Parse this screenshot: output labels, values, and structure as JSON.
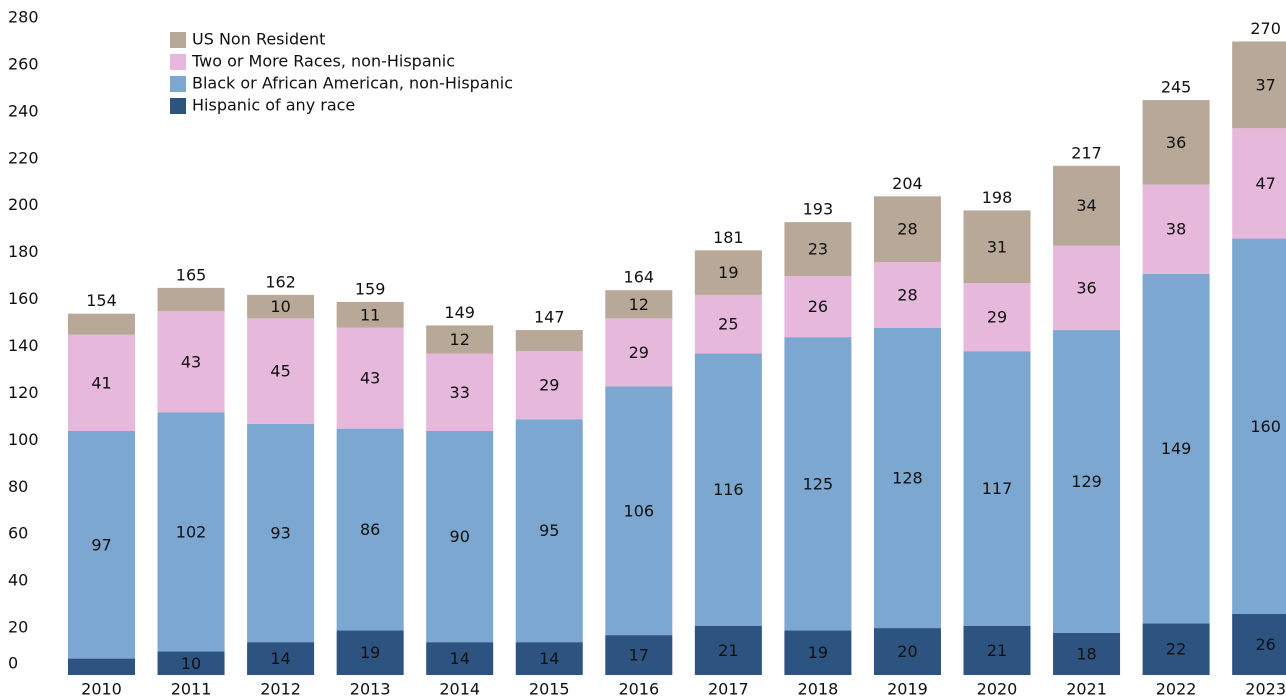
{
  "chart_data": {
    "type": "stacked_bar",
    "categories": [
      "2010",
      "2011",
      "2012",
      "2013",
      "2014",
      "2015",
      "2016",
      "2017",
      "2018",
      "2019",
      "2020",
      "2021",
      "2022",
      "2023"
    ],
    "series": [
      {
        "name": "Hispanic of any race",
        "color": "#2d5381",
        "values": [
          7,
          10,
          14,
          19,
          14,
          14,
          17,
          21,
          19,
          20,
          21,
          18,
          22,
          26
        ],
        "value_labels": [
          null,
          "10",
          "14",
          "19",
          "14",
          "14",
          "17",
          "21",
          "19",
          "20",
          "21",
          "18",
          "22",
          "26"
        ]
      },
      {
        "name": "Black or African American, non-Hispanic",
        "color": "#7ba7d0",
        "values": [
          97,
          102,
          93,
          86,
          90,
          95,
          106,
          116,
          125,
          128,
          117,
          129,
          149,
          160
        ],
        "value_labels": [
          "97",
          "102",
          "93",
          "86",
          "90",
          "95",
          "106",
          "116",
          "125",
          "128",
          "117",
          "129",
          "149",
          "160"
        ]
      },
      {
        "name": "Two or More Races, non-Hispanic",
        "color": "#e6b9dc",
        "values": [
          41,
          43,
          45,
          43,
          33,
          29,
          29,
          25,
          26,
          28,
          29,
          36,
          38,
          47
        ],
        "value_labels": [
          "41",
          "43",
          "45",
          "43",
          "33",
          "29",
          "29",
          "25",
          "26",
          "28",
          "29",
          "36",
          "38",
          "47"
        ]
      },
      {
        "name": "US Non Resident",
        "color": "#b8a898",
        "values": [
          9,
          10,
          10,
          11,
          12,
          9,
          12,
          19,
          23,
          28,
          31,
          34,
          36,
          37
        ],
        "value_labels": [
          null,
          null,
          "10",
          "11",
          "12",
          null,
          "12",
          "19",
          "23",
          "28",
          "31",
          "34",
          "36",
          "37"
        ]
      }
    ],
    "totals": [
      154,
      165,
      162,
      159,
      149,
      147,
      164,
      181,
      193,
      204,
      198,
      217,
      245,
      270
    ],
    "ylim": [
      0,
      280
    ],
    "yticks": [
      0,
      20,
      40,
      60,
      80,
      100,
      120,
      140,
      160,
      180,
      200,
      220,
      240,
      260,
      280
    ],
    "grid": false,
    "legend": "upper left"
  }
}
